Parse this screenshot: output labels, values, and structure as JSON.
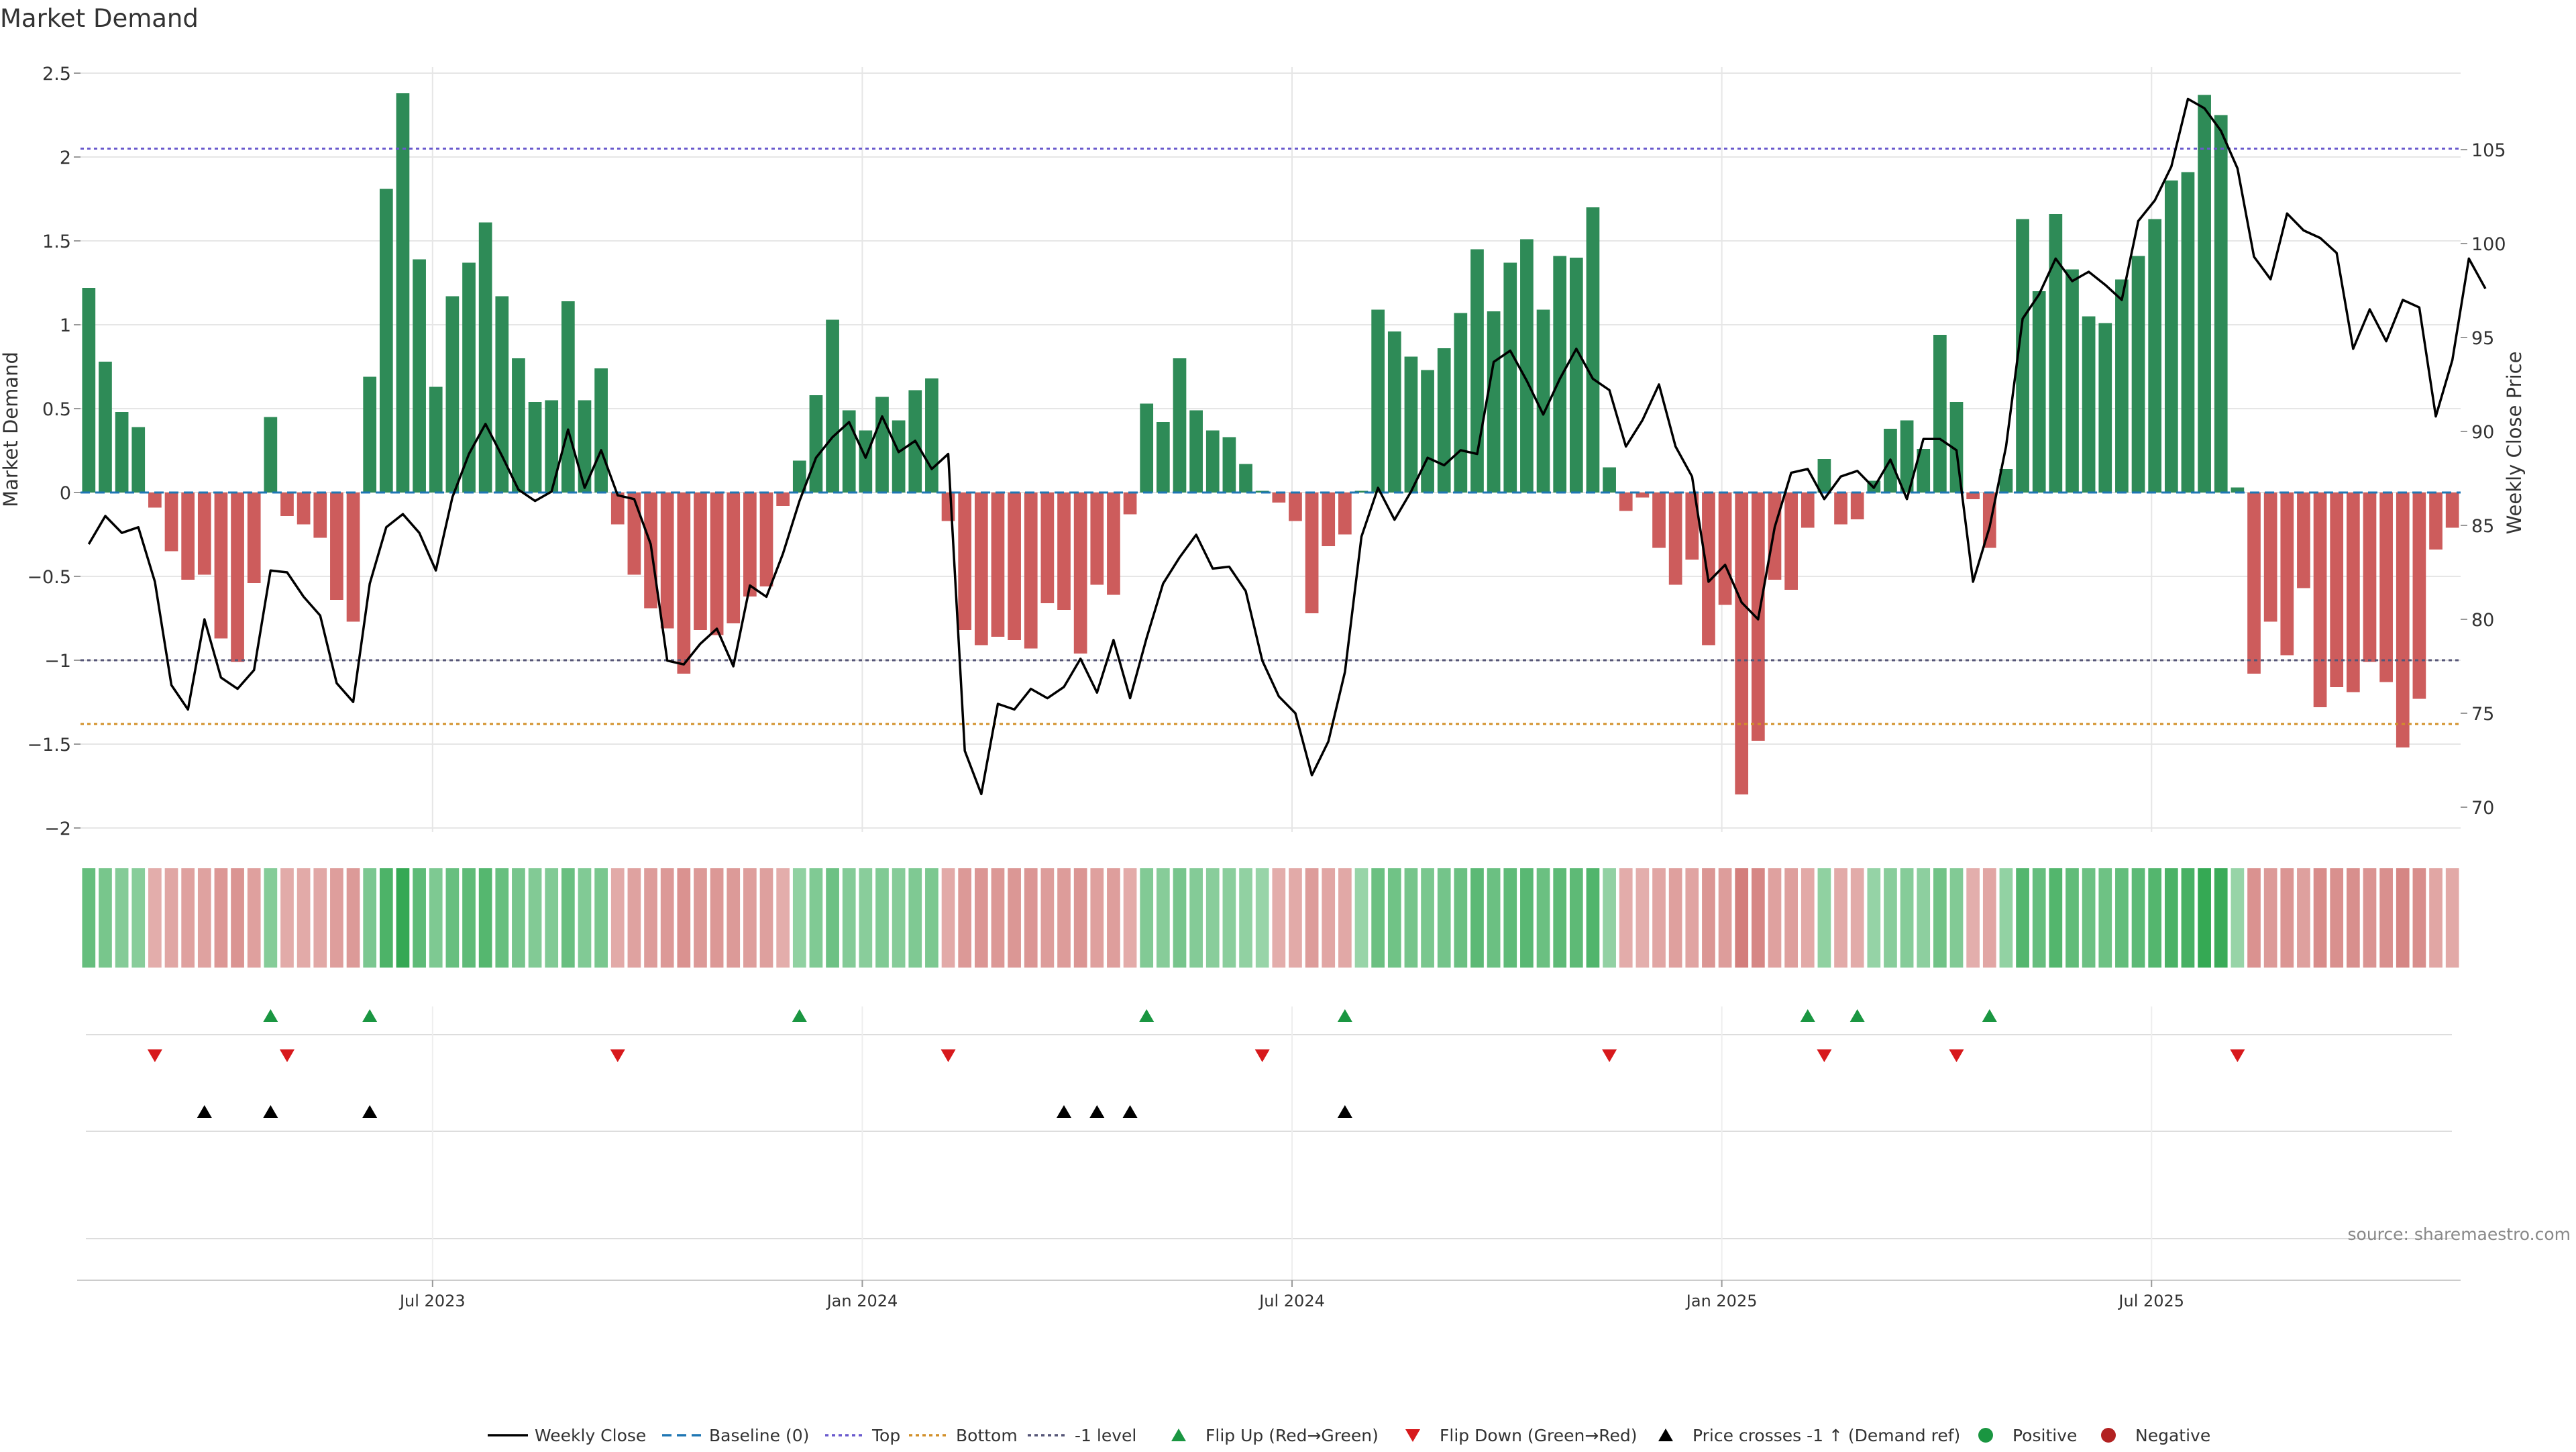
{
  "colors": {
    "positive": "#2e8b57",
    "negative": "#cd5c5c",
    "price": "#000000",
    "baseline": "#1f77b4",
    "top": "#6a5acd",
    "bottom": "#d2902a",
    "minus1": "#555577",
    "flip_up": "#1a9641",
    "flip_down": "#d7191c",
    "cross": "#000000",
    "grid": "#e6e6e6",
    "axis": "#cccccc",
    "text": "#333333"
  },
  "chart_data": {
    "type": "bar",
    "title": "Market Demand",
    "ylabel": "Market Demand",
    "ylabel_right": "Weekly Close Price",
    "ylim": [
      -2.0,
      2.5
    ],
    "ylim_right": [
      68,
      108
    ],
    "y_ticks": [
      2.5,
      2,
      1.5,
      1,
      0.5,
      0,
      -0.5,
      -1,
      -1.5,
      -2
    ],
    "y_tick_labels": [
      "2.5",
      "2",
      "1.5",
      "1",
      "0.5",
      "0",
      "−0.5",
      "−1",
      "−1.5",
      "−2"
    ],
    "y_ticks_right": [
      105,
      100,
      95,
      90,
      85,
      80,
      75,
      70
    ],
    "y_tick_labels_right": [
      "105",
      "100",
      "95",
      "90",
      "85",
      "80",
      "75",
      "70"
    ],
    "x_tick_labels": [
      "Jul 2023",
      "Jan 2024",
      "Jul 2024",
      "Jan 2025",
      "Jul 2025"
    ],
    "x_tick_positions": [
      21.3,
      47.3,
      73.3,
      99.3,
      125.3
    ],
    "reference_lines": {
      "top": 2.05,
      "bottom": -1.38,
      "minus1": -1.0,
      "baseline": 0
    },
    "demand": [
      1.22,
      0.78,
      0.48,
      0.39,
      -0.09,
      -0.35,
      -0.52,
      -0.49,
      -0.87,
      -1.01,
      -0.54,
      0.45,
      -0.14,
      -0.19,
      -0.27,
      -0.64,
      -0.77,
      0.69,
      1.81,
      2.38,
      1.39,
      0.63,
      1.17,
      1.37,
      1.61,
      1.17,
      0.8,
      0.54,
      0.55,
      1.14,
      0.55,
      0.74,
      -0.19,
      -0.49,
      -0.69,
      -0.81,
      -1.08,
      -0.82,
      -0.85,
      -0.78,
      -0.62,
      -0.56,
      -0.08,
      0.19,
      0.58,
      1.03,
      0.49,
      0.37,
      0.57,
      0.43,
      0.61,
      0.68,
      -0.17,
      -0.82,
      -0.91,
      -0.86,
      -0.88,
      -0.93,
      -0.66,
      -0.7,
      -0.96,
      -0.55,
      -0.61,
      -0.13,
      0.53,
      0.42,
      0.8,
      0.49,
      0.37,
      0.33,
      0.17,
      0.01,
      -0.06,
      -0.17,
      -0.72,
      -0.32,
      -0.25,
      0.01,
      1.09,
      0.96,
      0.81,
      0.73,
      0.86,
      1.07,
      1.45,
      1.08,
      1.37,
      1.51,
      1.09,
      1.41,
      1.4,
      1.7,
      0.15,
      -0.11,
      -0.03,
      -0.33,
      -0.55,
      -0.4,
      -0.91,
      -0.67,
      -1.8,
      -1.48,
      -0.52,
      -0.58,
      -0.21,
      0.2,
      -0.19,
      -0.16,
      0.07,
      0.38,
      0.43,
      0.26,
      0.94,
      0.54,
      -0.04,
      -0.33,
      0.14,
      1.63,
      1.2,
      1.66,
      1.33,
      1.05,
      1.01,
      1.27,
      1.41,
      1.63,
      1.86,
      1.91,
      2.37,
      2.25,
      0.03,
      -1.08,
      -0.77,
      -0.97,
      -0.57,
      -1.28,
      -1.16,
      -1.19,
      -1.01,
      -1.13,
      -1.52,
      -1.23,
      -0.34,
      -0.21
    ],
    "price": [
      84.0,
      85.5,
      84.6,
      84.9,
      82.0,
      76.5,
      75.2,
      80.0,
      76.9,
      76.3,
      77.3,
      82.6,
      82.5,
      81.2,
      80.2,
      76.6,
      75.6,
      81.9,
      84.9,
      85.6,
      84.6,
      82.6,
      86.5,
      88.8,
      90.4,
      88.7,
      86.9,
      86.3,
      86.8,
      90.1,
      87.0,
      89.0,
      86.6,
      86.4,
      84.0,
      77.8,
      77.6,
      78.7,
      79.5,
      77.5,
      81.8,
      81.2,
      83.5,
      86.3,
      88.6,
      89.7,
      90.5,
      88.6,
      90.8,
      88.9,
      89.5,
      88.0,
      88.8,
      73.0,
      70.7,
      75.5,
      75.2,
      76.3,
      75.8,
      76.4,
      77.9,
      76.1,
      78.9,
      75.8,
      79.0,
      81.9,
      83.3,
      84.5,
      82.7,
      82.8,
      81.5,
      77.8,
      75.9,
      75.0,
      71.7,
      73.5,
      77.2,
      84.4,
      87.0,
      85.3,
      86.8,
      88.6,
      88.2,
      89.0,
      88.8,
      93.7,
      94.3,
      92.7,
      90.9,
      92.8,
      94.4,
      92.8,
      92.2,
      89.2,
      90.6,
      92.5,
      89.2,
      87.6,
      82.0,
      82.9,
      80.9,
      80.0,
      84.9,
      87.8,
      88.0,
      86.4,
      87.6,
      87.9,
      87.0,
      88.5,
      86.4,
      89.6,
      89.6,
      89.0,
      82.0,
      84.9,
      89.2,
      96.0,
      97.3,
      99.2,
      98.0,
      98.5,
      97.8,
      97.0,
      101.2,
      102.3,
      104.1,
      107.7,
      107.2,
      106.0,
      104.0,
      99.3,
      98.1,
      101.6,
      100.7,
      100.3,
      99.5,
      94.4,
      96.5,
      94.8,
      97.0,
      96.6,
      90.8,
      93.8,
      99.2,
      97.6
    ],
    "flip_up_idx": [
      11,
      17,
      43,
      64,
      76,
      104,
      107,
      115
    ],
    "flip_down_idx": [
      4,
      12,
      32,
      52,
      71,
      92,
      105,
      113,
      130
    ],
    "price_cross_idx": [
      7,
      11,
      17,
      59,
      61,
      63,
      76
    ],
    "legend": [
      {
        "label": "Weekly Close",
        "kind": "line-solid"
      },
      {
        "label": "Baseline (0)",
        "kind": "line-dash-blue"
      },
      {
        "label": "Top",
        "kind": "line-dot-purple"
      },
      {
        "label": "Bottom",
        "kind": "line-dot-orange"
      },
      {
        "label": "-1 level",
        "kind": "line-dot-gray"
      },
      {
        "label": "Flip Up (Red→Green)",
        "kind": "tri-up-green"
      },
      {
        "label": "Flip Down (Green→Red)",
        "kind": "tri-down-red"
      },
      {
        "label": "Price crosses -1 ↑ (Demand ref)",
        "kind": "tri-up-black"
      },
      {
        "label": "Positive",
        "kind": "dot-green"
      },
      {
        "label": "Negative",
        "kind": "dot-red"
      }
    ],
    "source": "source: sharemaestro.com"
  }
}
